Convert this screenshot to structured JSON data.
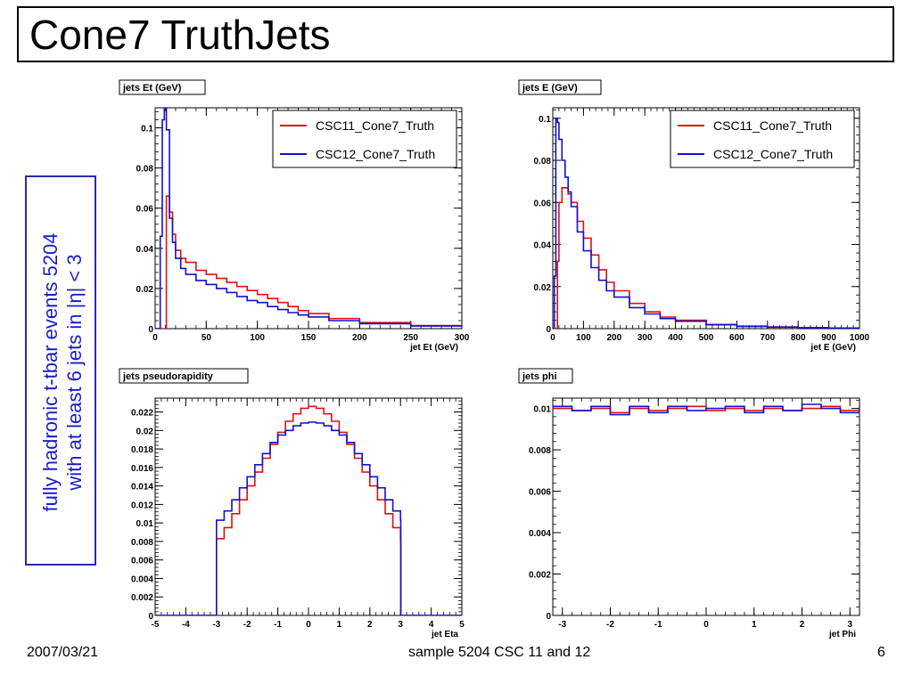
{
  "slide": {
    "title": "Cone7 TruthJets",
    "side_note_line1": "fully hadronic t-tbar events 5204",
    "side_note_line2": "with at least 6 jets in |η| < 3",
    "footer_date": "2007/03/21",
    "footer_center": "sample 5204 CSC 11 and 12",
    "footer_page": "6"
  },
  "colors": {
    "series1": "#e01010",
    "series2": "#1010d0",
    "side_text": "#1c1cc4"
  },
  "chart_data": [
    {
      "type": "line",
      "title": "jets Et (GeV)",
      "xlabel": "jet Et (GeV)",
      "ylabel": "",
      "xlim": [
        0,
        300
      ],
      "ylim": [
        0,
        0.11
      ],
      "xticks": [
        0,
        50,
        100,
        150,
        200,
        250,
        300
      ],
      "yticks": [
        0,
        0.02,
        0.04,
        0.06,
        0.08,
        0.1
      ],
      "ytick_labels": [
        "0",
        "0.02",
        "0.04",
        "0.06",
        "0.08",
        "0.1"
      ],
      "legend": "top-right",
      "series": [
        {
          "name": "CSC11_Cone7_Truth",
          "x": [
            0,
            10,
            11,
            14,
            17,
            20,
            25,
            30,
            40,
            50,
            60,
            70,
            80,
            90,
            100,
            110,
            120,
            130,
            140,
            150,
            170,
            200,
            250,
            300
          ],
          "y": [
            0,
            0,
            0.066,
            0.058,
            0.047,
            0.039,
            0.035,
            0.033,
            0.029,
            0.027,
            0.025,
            0.023,
            0.021,
            0.019,
            0.017,
            0.015,
            0.013,
            0.011,
            0.009,
            0.0075,
            0.005,
            0.003,
            0.0015,
            0.001
          ]
        },
        {
          "name": "CSC12_Cone7_Truth",
          "x": [
            0,
            5,
            7,
            9,
            11,
            14,
            17,
            20,
            25,
            30,
            40,
            50,
            60,
            70,
            80,
            90,
            100,
            110,
            120,
            130,
            140,
            150,
            170,
            200,
            250,
            300
          ],
          "y": [
            0,
            0.046,
            0.104,
            0.11,
            0.099,
            0.055,
            0.043,
            0.035,
            0.03,
            0.027,
            0.024,
            0.022,
            0.02,
            0.018,
            0.016,
            0.014,
            0.013,
            0.011,
            0.0095,
            0.008,
            0.0068,
            0.0058,
            0.004,
            0.0025,
            0.0013,
            0.0009
          ]
        }
      ]
    },
    {
      "type": "line",
      "title": "jets E (GeV)",
      "xlabel": "jet E (GeV)",
      "ylabel": "",
      "xlim": [
        0,
        1000
      ],
      "ylim": [
        0,
        0.105
      ],
      "xticks": [
        0,
        100,
        200,
        300,
        400,
        500,
        600,
        700,
        800,
        900,
        1000
      ],
      "yticks": [
        0,
        0.02,
        0.04,
        0.06,
        0.08,
        0.1
      ],
      "ytick_labels": [
        "0",
        "0.02",
        "0.04",
        "0.06",
        "0.08",
        "0.1"
      ],
      "legend": "top-right",
      "series": [
        {
          "name": "CSC11_Cone7_Truth",
          "x": [
            0,
            10,
            15,
            20,
            30,
            40,
            50,
            60,
            80,
            100,
            125,
            150,
            175,
            200,
            250,
            300,
            350,
            400,
            500,
            600,
            700,
            800,
            900,
            1000
          ],
          "y": [
            0,
            0,
            0.032,
            0.06,
            0.067,
            0.067,
            0.064,
            0.06,
            0.051,
            0.043,
            0.035,
            0.028,
            0.022,
            0.018,
            0.012,
            0.008,
            0.0055,
            0.004,
            0.002,
            0.0012,
            0.0008,
            0.0005,
            0.0003,
            0.0002
          ]
        },
        {
          "name": "CSC12_Cone7_Truth",
          "x": [
            0,
            5,
            10,
            15,
            20,
            30,
            40,
            50,
            60,
            80,
            100,
            125,
            150,
            175,
            200,
            250,
            300,
            350,
            400,
            500,
            600,
            700,
            800,
            900,
            1000
          ],
          "y": [
            0,
            0.025,
            0.1,
            0.098,
            0.09,
            0.08,
            0.072,
            0.065,
            0.058,
            0.046,
            0.037,
            0.029,
            0.023,
            0.018,
            0.015,
            0.01,
            0.007,
            0.0048,
            0.0035,
            0.0018,
            0.001,
            0.0007,
            0.0004,
            0.0003,
            0.0002
          ]
        }
      ]
    },
    {
      "type": "line",
      "title": "jets pseudorapidity",
      "xlabel": "jet Eta",
      "ylabel": "",
      "xlim": [
        -5,
        5
      ],
      "ylim": [
        0,
        0.0235
      ],
      "xticks": [
        -5,
        -4,
        -3,
        -2,
        -1,
        0,
        1,
        2,
        3,
        4,
        5
      ],
      "yticks": [
        0,
        0.002,
        0.004,
        0.006,
        0.008,
        0.01,
        0.012,
        0.014,
        0.016,
        0.018,
        0.02,
        0.022
      ],
      "ytick_labels": [
        "0",
        "0.002",
        "0.004",
        "0.006",
        "0.008",
        "0.01",
        "0.012",
        "0.014",
        "0.016",
        "0.018",
        "0.02",
        "0.022"
      ],
      "legend": "none",
      "series": [
        {
          "name": "CSC11_Cone7_Truth",
          "x": [
            -5,
            -3.01,
            -3,
            -2.75,
            -2.5,
            -2.25,
            -2,
            -1.75,
            -1.5,
            -1.25,
            -1,
            -0.75,
            -0.5,
            -0.25,
            0,
            0.25,
            0.5,
            0.75,
            1,
            1.25,
            1.5,
            1.75,
            2,
            2.25,
            2.5,
            2.75,
            3,
            3.01,
            5
          ],
          "y": [
            0,
            0,
            0.0083,
            0.0095,
            0.011,
            0.0125,
            0.014,
            0.0155,
            0.017,
            0.0185,
            0.0198,
            0.021,
            0.0218,
            0.0224,
            0.0226,
            0.0224,
            0.0218,
            0.021,
            0.0198,
            0.0185,
            0.017,
            0.0155,
            0.014,
            0.0125,
            0.011,
            0.0095,
            0.0083,
            0,
            0
          ]
        },
        {
          "name": "CSC12_Cone7_Truth",
          "x": [
            -5,
            -3.01,
            -3,
            -2.75,
            -2.5,
            -2.25,
            -2,
            -1.75,
            -1.5,
            -1.25,
            -1,
            -0.75,
            -0.5,
            -0.25,
            0,
            0.25,
            0.5,
            0.75,
            1,
            1.25,
            1.5,
            1.75,
            2,
            2.25,
            2.5,
            2.75,
            3,
            3.01,
            5
          ],
          "y": [
            0,
            0,
            0.0103,
            0.0113,
            0.0125,
            0.0138,
            0.015,
            0.0163,
            0.0175,
            0.0187,
            0.0195,
            0.02,
            0.0205,
            0.0208,
            0.0209,
            0.0208,
            0.0205,
            0.02,
            0.0195,
            0.0187,
            0.0175,
            0.0163,
            0.015,
            0.0138,
            0.0125,
            0.0113,
            0.0103,
            0,
            0
          ]
        }
      ]
    },
    {
      "type": "line",
      "title": "jets phi",
      "xlabel": "jet Phi",
      "ylabel": "",
      "xlim": [
        -3.2,
        3.2
      ],
      "ylim": [
        0,
        0.0105
      ],
      "xticks": [
        -3,
        -2,
        -1,
        0,
        1,
        2,
        3
      ],
      "yticks": [
        0,
        0.002,
        0.004,
        0.006,
        0.008,
        0.01
      ],
      "ytick_labels": [
        "0",
        "0.002",
        "0.004",
        "0.006",
        "0.008",
        "0.01"
      ],
      "legend": "none",
      "series": [
        {
          "name": "CSC11_Cone7_Truth",
          "x": [
            -3.2,
            -2.8,
            -2.4,
            -2.0,
            -1.6,
            -1.2,
            -0.8,
            -0.4,
            0,
            0.4,
            0.8,
            1.2,
            1.6,
            2.0,
            2.4,
            2.8,
            3.2
          ],
          "y": [
            0.01,
            0.0099,
            0.01,
            0.0098,
            0.01,
            0.0099,
            0.01,
            0.0101,
            0.0099,
            0.01,
            0.0099,
            0.01,
            0.0099,
            0.01,
            0.0101,
            0.0099,
            0.01
          ]
        },
        {
          "name": "CSC12_Cone7_Truth",
          "x": [
            -3.2,
            -2.8,
            -2.4,
            -2.0,
            -1.6,
            -1.2,
            -0.8,
            -0.4,
            0,
            0.4,
            0.8,
            1.2,
            1.6,
            2.0,
            2.4,
            2.8,
            3.2
          ],
          "y": [
            0.0101,
            0.0099,
            0.0101,
            0.0097,
            0.0101,
            0.0098,
            0.0101,
            0.0099,
            0.01,
            0.0101,
            0.0098,
            0.0101,
            0.0099,
            0.0102,
            0.01,
            0.0098,
            0.0101
          ]
        }
      ]
    }
  ]
}
